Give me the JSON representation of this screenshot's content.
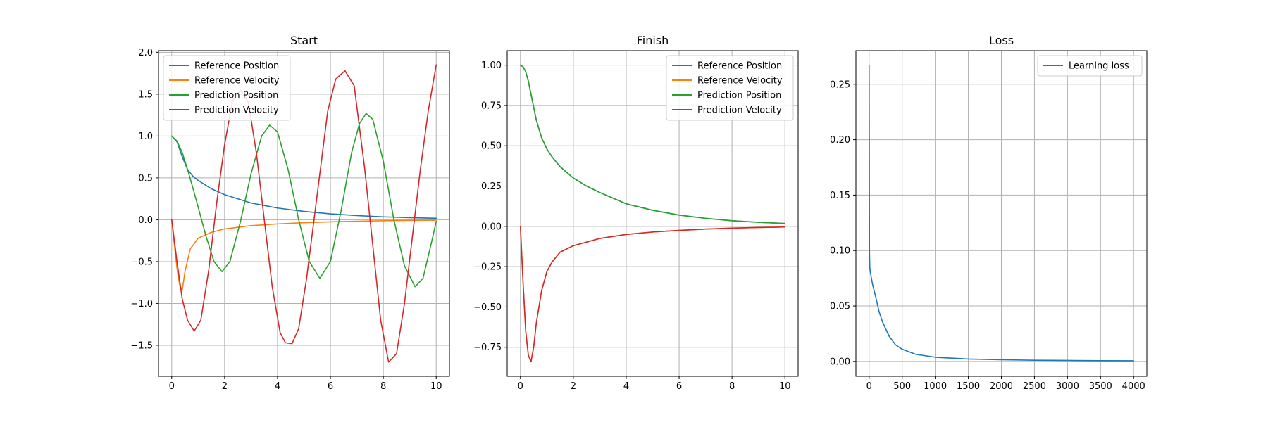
{
  "colors": {
    "blue": "#1f77b4",
    "orange": "#ff7f0e",
    "green": "#2ca02c",
    "red": "#d62728",
    "grid": "#b0b0b0"
  },
  "chart_data": [
    {
      "type": "line",
      "title": "Start",
      "xlabel": "",
      "ylabel": "",
      "xlim": [
        -0.5,
        10.5
      ],
      "ylim": [
        -1.87,
        2.02
      ],
      "xticks": [
        0,
        2,
        4,
        6,
        8,
        10
      ],
      "xtick_labels": [
        "0",
        "2",
        "4",
        "6",
        "8",
        "10"
      ],
      "yticks": [
        -1.5,
        -1.0,
        -0.5,
        0.0,
        0.5,
        1.0,
        1.5,
        2.0
      ],
      "ytick_labels": [
        "−1.5",
        "−1.0",
        "−0.5",
        "0.0",
        "0.5",
        "1.0",
        "1.5",
        "2.0"
      ],
      "grid": true,
      "legend_position": "top-left",
      "series": [
        {
          "name": "Reference Position",
          "color": "#1f77b4",
          "x": [
            0,
            0.2,
            0.4,
            0.6,
            0.8,
            1.0,
            1.5,
            2,
            3,
            4,
            5,
            6,
            7,
            8,
            9,
            10
          ],
          "y": [
            1.0,
            0.93,
            0.75,
            0.6,
            0.52,
            0.47,
            0.37,
            0.3,
            0.2,
            0.14,
            0.1,
            0.07,
            0.05,
            0.035,
            0.025,
            0.018
          ]
        },
        {
          "name": "Reference Velocity",
          "color": "#ff7f0e",
          "x": [
            0,
            0.1,
            0.2,
            0.3,
            0.4,
            0.5,
            0.7,
            1.0,
            1.5,
            2,
            3,
            4,
            5,
            6,
            7,
            8,
            9,
            10
          ],
          "y": [
            0.0,
            -0.3,
            -0.58,
            -0.78,
            -0.84,
            -0.62,
            -0.35,
            -0.22,
            -0.15,
            -0.11,
            -0.07,
            -0.05,
            -0.035,
            -0.025,
            -0.018,
            -0.012,
            -0.008,
            -0.005
          ]
        },
        {
          "name": "Prediction Position",
          "color": "#2ca02c",
          "x": [
            0,
            0.2,
            0.4,
            0.6,
            0.8,
            1.0,
            1.3,
            1.6,
            1.9,
            2.2,
            2.6,
            3.0,
            3.4,
            3.7,
            4.0,
            4.4,
            4.8,
            5.2,
            5.6,
            6.0,
            6.4,
            6.8,
            7.1,
            7.35,
            7.6,
            8.0,
            8.4,
            8.8,
            9.2,
            9.5,
            9.8,
            10
          ],
          "y": [
            1.0,
            0.94,
            0.8,
            0.6,
            0.38,
            0.15,
            -0.2,
            -0.5,
            -0.62,
            -0.5,
            -0.02,
            0.55,
            1.0,
            1.13,
            1.05,
            0.6,
            0.0,
            -0.5,
            -0.7,
            -0.5,
            0.1,
            0.8,
            1.15,
            1.27,
            1.2,
            0.7,
            0.0,
            -0.55,
            -0.8,
            -0.7,
            -0.3,
            -0.02
          ]
        },
        {
          "name": "Prediction Velocity",
          "color": "#d62728",
          "x": [
            0,
            0.2,
            0.4,
            0.6,
            0.85,
            1.1,
            1.4,
            1.7,
            2.0,
            2.3,
            2.6,
            2.9,
            3.2,
            3.5,
            3.8,
            4.1,
            4.3,
            4.55,
            4.8,
            5.1,
            5.5,
            5.9,
            6.2,
            6.55,
            6.9,
            7.3,
            7.6,
            7.9,
            8.2,
            8.5,
            8.8,
            9.1,
            9.4,
            9.7,
            10
          ],
          "y": [
            0.0,
            -0.5,
            -0.95,
            -1.2,
            -1.33,
            -1.2,
            -0.6,
            0.2,
            0.9,
            1.42,
            1.55,
            1.4,
            0.8,
            0.0,
            -0.8,
            -1.35,
            -1.47,
            -1.48,
            -1.3,
            -0.7,
            0.3,
            1.3,
            1.68,
            1.78,
            1.6,
            0.6,
            -0.3,
            -1.2,
            -1.7,
            -1.6,
            -1.0,
            -0.2,
            0.6,
            1.3,
            1.85
          ]
        }
      ]
    },
    {
      "type": "line",
      "title": "Finish",
      "xlabel": "",
      "ylabel": "",
      "xlim": [
        -0.5,
        10.5
      ],
      "ylim": [
        -0.93,
        1.09
      ],
      "xticks": [
        0,
        2,
        4,
        6,
        8,
        10
      ],
      "xtick_labels": [
        "0",
        "2",
        "4",
        "6",
        "8",
        "10"
      ],
      "yticks": [
        -0.75,
        -0.5,
        -0.25,
        0.0,
        0.25,
        0.5,
        0.75,
        1.0
      ],
      "ytick_labels": [
        "−0.75",
        "−0.50",
        "−0.25",
        "0.00",
        "0.25",
        "0.50",
        "0.75",
        "1.00"
      ],
      "grid": true,
      "legend_position": "top-right",
      "series": [
        {
          "name": "Reference Position",
          "color": "#1f77b4",
          "x": [
            0,
            0.1,
            0.2,
            0.3,
            0.4,
            0.5,
            0.6,
            0.8,
            1.0,
            1.2,
            1.5,
            2,
            2.5,
            3,
            4,
            5,
            6,
            7,
            8,
            9,
            10
          ],
          "y": [
            1.0,
            0.99,
            0.96,
            0.9,
            0.82,
            0.74,
            0.66,
            0.55,
            0.48,
            0.43,
            0.37,
            0.3,
            0.25,
            0.21,
            0.14,
            0.1,
            0.07,
            0.05,
            0.035,
            0.025,
            0.018
          ]
        },
        {
          "name": "Reference Velocity",
          "color": "#ff7f0e",
          "x": [
            0,
            0.1,
            0.2,
            0.3,
            0.4,
            0.5,
            0.6,
            0.8,
            1.0,
            1.2,
            1.5,
            2,
            3,
            4,
            5,
            6,
            7,
            8,
            9,
            10
          ],
          "y": [
            0.0,
            -0.35,
            -0.65,
            -0.8,
            -0.84,
            -0.75,
            -0.6,
            -0.4,
            -0.28,
            -0.22,
            -0.16,
            -0.12,
            -0.075,
            -0.05,
            -0.035,
            -0.025,
            -0.017,
            -0.011,
            -0.007,
            -0.004
          ]
        },
        {
          "name": "Prediction Position",
          "color": "#2ca02c",
          "x": [
            0,
            0.1,
            0.2,
            0.3,
            0.4,
            0.5,
            0.6,
            0.8,
            1.0,
            1.2,
            1.5,
            2,
            2.5,
            3,
            4,
            5,
            6,
            7,
            8,
            9,
            10
          ],
          "y": [
            1.0,
            0.99,
            0.96,
            0.9,
            0.82,
            0.74,
            0.66,
            0.55,
            0.48,
            0.43,
            0.37,
            0.3,
            0.25,
            0.21,
            0.14,
            0.1,
            0.07,
            0.05,
            0.035,
            0.025,
            0.018
          ]
        },
        {
          "name": "Prediction Velocity",
          "color": "#d62728",
          "x": [
            0,
            0.1,
            0.2,
            0.3,
            0.4,
            0.5,
            0.6,
            0.8,
            1.0,
            1.2,
            1.5,
            2,
            3,
            4,
            5,
            6,
            7,
            8,
            9,
            10
          ],
          "y": [
            0.0,
            -0.35,
            -0.65,
            -0.8,
            -0.84,
            -0.75,
            -0.6,
            -0.4,
            -0.28,
            -0.22,
            -0.16,
            -0.12,
            -0.075,
            -0.05,
            -0.035,
            -0.025,
            -0.017,
            -0.011,
            -0.007,
            -0.004
          ]
        }
      ]
    },
    {
      "type": "line",
      "title": "Loss",
      "xlabel": "",
      "ylabel": "",
      "xlim": [
        -200,
        4200
      ],
      "ylim": [
        -0.0134,
        0.2803
      ],
      "xticks": [
        0,
        500,
        1000,
        1500,
        2000,
        2500,
        3000,
        3500,
        4000
      ],
      "xtick_labels": [
        "0",
        "500",
        "1000",
        "1500",
        "2000",
        "2500",
        "3000",
        "3500",
        "4000"
      ],
      "yticks": [
        0.0,
        0.05,
        0.1,
        0.15,
        0.2,
        0.25
      ],
      "ytick_labels": [
        "0.00",
        "0.05",
        "0.10",
        "0.15",
        "0.20",
        "0.25"
      ],
      "grid": true,
      "legend_position": "top-right",
      "series": [
        {
          "name": "Learning loss",
          "color": "#1f77b4",
          "x": [
            0,
            5,
            10,
            20,
            50,
            100,
            150,
            200,
            300,
            400,
            500,
            700,
            1000,
            1500,
            2000,
            2500,
            3000,
            3500,
            4000
          ],
          "y": [
            0.267,
            0.1,
            0.085,
            0.08,
            0.07,
            0.058,
            0.045,
            0.036,
            0.023,
            0.015,
            0.011,
            0.0065,
            0.0038,
            0.0022,
            0.0015,
            0.0011,
            0.0009,
            0.0007,
            0.0006
          ]
        }
      ]
    }
  ]
}
